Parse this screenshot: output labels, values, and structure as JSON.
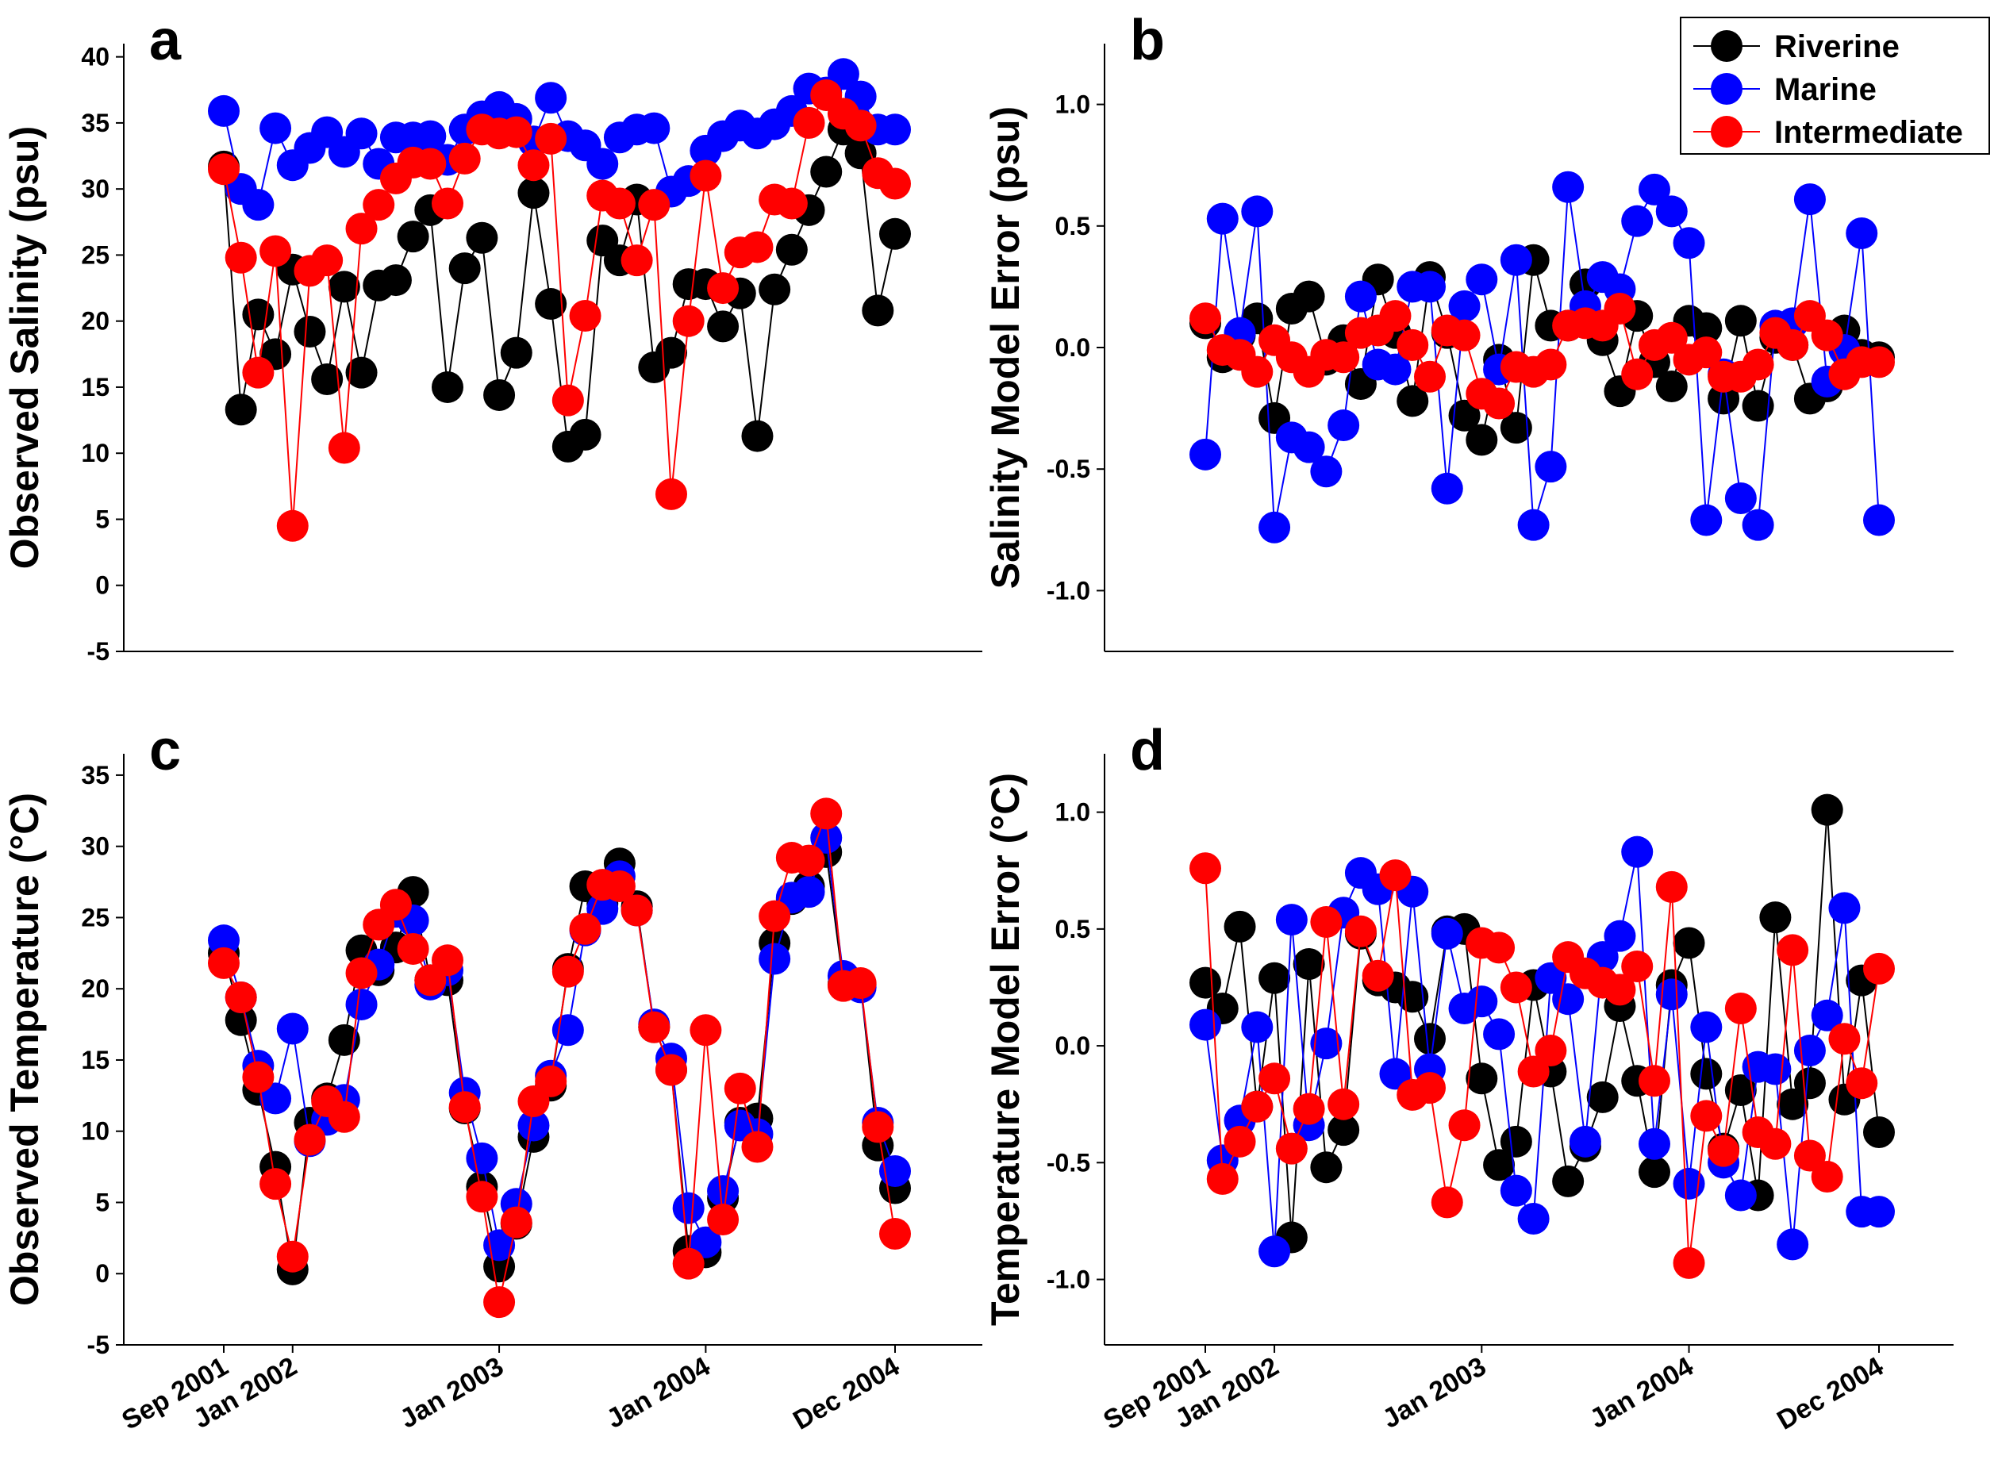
{
  "legend": [
    {
      "name": "Riverine",
      "color": "#000000"
    },
    {
      "name": "Marine",
      "color": "#0000ff"
    },
    {
      "name": "Intermediate",
      "color": "#ff0000"
    }
  ],
  "chart_data": [
    {
      "id": "a",
      "type": "line",
      "title": "a",
      "ylabel": "Observed Salinity (psu)",
      "ylim": [
        -5,
        41
      ],
      "yticks": [
        "-5",
        "0",
        "5",
        "10",
        "15",
        "20",
        "25",
        "30",
        "35",
        "40"
      ],
      "ytick_values": [
        -5,
        0,
        5,
        10,
        15,
        20,
        25,
        30,
        35,
        40
      ],
      "xticks": [],
      "x": [
        0,
        1,
        2,
        3,
        4,
        5,
        6,
        7,
        8,
        9,
        10,
        11,
        12,
        13,
        14,
        15,
        16,
        17,
        18,
        19,
        20,
        21,
        22,
        23,
        24,
        25,
        26,
        27,
        28,
        29,
        30,
        31,
        32,
        33,
        34,
        35,
        36,
        37,
        38,
        39
      ],
      "series": [
        {
          "name": "Riverine",
          "values": [
            31.7,
            13.3,
            20.5,
            17.5,
            23.9,
            19.2,
            15.6,
            22.6,
            16.1,
            22.7,
            23.1,
            26.4,
            28.4,
            15.0,
            24.0,
            26.3,
            14.4,
            17.6,
            29.7,
            21.3,
            10.5,
            11.4,
            26.1,
            24.6,
            29.2,
            16.5,
            17.6,
            22.8,
            22.8,
            19.6,
            22.1,
            11.3,
            22.4,
            25.4,
            28.4,
            31.3,
            34.5,
            32.7,
            20.8,
            26.6
          ]
        },
        {
          "name": "Marine",
          "values": [
            35.9,
            30.0,
            28.8,
            34.6,
            31.8,
            33.1,
            34.3,
            32.8,
            34.2,
            31.9,
            33.9,
            33.9,
            34.0,
            32.2,
            34.5,
            35.5,
            36.2,
            35.3,
            33.6,
            36.9,
            34.0,
            33.3,
            31.9,
            33.9,
            34.5,
            34.6,
            29.8,
            30.6,
            32.9,
            34.0,
            34.8,
            34.2,
            34.9,
            35.9,
            37.6,
            37.3,
            38.7,
            37.0,
            34.5,
            34.5
          ]
        },
        {
          "name": "Intermediate",
          "values": [
            31.5,
            24.8,
            16.1,
            25.3,
            4.5,
            23.8,
            24.6,
            10.4,
            27.0,
            28.8,
            30.8,
            32.0,
            31.9,
            28.9,
            32.3,
            34.5,
            34.2,
            34.3,
            31.8,
            33.8,
            14.0,
            20.4,
            29.5,
            28.9,
            24.6,
            28.8,
            6.9,
            20.0,
            31.0,
            22.5,
            25.2,
            25.6,
            29.2,
            28.9,
            35.0,
            37.1,
            35.7,
            34.8,
            31.2,
            30.4
          ]
        }
      ]
    },
    {
      "id": "b",
      "type": "line",
      "title": "b",
      "ylabel": "Salinity Model Error (psu)",
      "ylim": [
        -1.25,
        1.25
      ],
      "yticks": [
        "-1.0",
        "-0.5",
        "0.0",
        "0.5",
        "1.0"
      ],
      "ytick_values": [
        -1.0,
        -0.5,
        0.0,
        0.5,
        1.0
      ],
      "xticks": [],
      "x": [
        0,
        1,
        2,
        3,
        4,
        5,
        6,
        7,
        8,
        9,
        10,
        11,
        12,
        13,
        14,
        15,
        16,
        17,
        18,
        19,
        20,
        21,
        22,
        23,
        24,
        25,
        26,
        27,
        28,
        29,
        30,
        31,
        32,
        33,
        34,
        35,
        36,
        37,
        38,
        39
      ],
      "series": [
        {
          "name": "Riverine",
          "values": [
            0.1,
            -0.04,
            0.05,
            0.12,
            -0.29,
            0.16,
            0.21,
            -0.05,
            0.03,
            -0.15,
            0.28,
            0.06,
            -0.22,
            0.29,
            0.06,
            -0.28,
            -0.38,
            -0.05,
            -0.33,
            0.36,
            0.09,
            0.09,
            0.26,
            0.03,
            -0.18,
            0.13,
            -0.06,
            -0.16,
            0.11,
            0.08,
            -0.21,
            0.11,
            -0.24,
            0.04,
            0.01,
            -0.21,
            -0.16,
            0.07,
            -0.03,
            -0.04
          ]
        },
        {
          "name": "Marine",
          "values": [
            -0.44,
            0.53,
            0.06,
            0.56,
            -0.74,
            -0.37,
            -0.41,
            -0.51,
            -0.32,
            0.21,
            -0.07,
            -0.09,
            0.25,
            0.25,
            -0.58,
            0.17,
            0.28,
            -0.09,
            0.36,
            -0.73,
            -0.49,
            0.66,
            0.17,
            0.29,
            0.24,
            0.52,
            0.65,
            0.56,
            0.43,
            -0.71,
            -0.11,
            -0.62,
            -0.73,
            0.09,
            0.1,
            0.61,
            -0.14,
            -0.01,
            0.47,
            -0.71
          ]
        },
        {
          "name": "Intermediate",
          "values": [
            0.12,
            -0.01,
            -0.03,
            -0.1,
            0.03,
            -0.04,
            -0.1,
            -0.03,
            -0.04,
            0.06,
            0.07,
            0.13,
            0.01,
            -0.12,
            0.07,
            0.05,
            -0.19,
            -0.23,
            -0.08,
            -0.1,
            -0.07,
            0.09,
            0.1,
            0.09,
            0.16,
            -0.11,
            0.01,
            0.04,
            -0.05,
            -0.02,
            -0.12,
            -0.12,
            -0.07,
            0.06,
            0.01,
            0.13,
            0.05,
            -0.11,
            -0.06,
            -0.06
          ]
        }
      ]
    },
    {
      "id": "c",
      "type": "line",
      "title": "c",
      "ylabel": "Observed Temperature (°C)",
      "ylim": [
        -5,
        36.5
      ],
      "yticks": [
        "-5",
        "0",
        "5",
        "10",
        "15",
        "20",
        "25",
        "30",
        "35"
      ],
      "ytick_values": [
        -5,
        0,
        5,
        10,
        15,
        20,
        25,
        30,
        35
      ],
      "xticks": [
        "Sep 2001",
        "Jan 2002",
        "Jan 2003",
        "Jan 2004",
        "Dec 2004"
      ],
      "xtick_positions": [
        0,
        4,
        16,
        28,
        39
      ],
      "x": [
        0,
        1,
        2,
        3,
        4,
        5,
        6,
        7,
        8,
        9,
        10,
        11,
        12,
        13,
        14,
        15,
        16,
        17,
        18,
        19,
        20,
        21,
        22,
        23,
        24,
        25,
        26,
        27,
        28,
        29,
        30,
        31,
        32,
        33,
        34,
        35,
        36,
        37,
        38,
        39
      ],
      "series": [
        {
          "name": "Riverine",
          "values": [
            22.5,
            17.8,
            12.9,
            7.5,
            0.3,
            10.6,
            12.3,
            16.4,
            22.7,
            21.3,
            22.9,
            26.8,
            20.6,
            20.6,
            11.6,
            6.1,
            0.5,
            3.5,
            9.6,
            13.2,
            21.4,
            27.2,
            26.0,
            28.8,
            25.8,
            17.3,
            14.3,
            1.6,
            1.5,
            5.3,
            10.6,
            10.9,
            23.2,
            26.3,
            27.2,
            29.6,
            20.3,
            20.3,
            9.0,
            6.0
          ]
        },
        {
          "name": "Marine",
          "values": [
            23.4,
            19.4,
            14.6,
            12.3,
            17.2,
            9.3,
            10.8,
            12.2,
            18.9,
            21.7,
            25.4,
            24.8,
            20.3,
            21.3,
            12.7,
            8.1,
            2.0,
            4.9,
            10.4,
            13.9,
            17.1,
            24.1,
            25.6,
            27.9,
            25.5,
            17.5,
            15.1,
            4.6,
            2.2,
            5.8,
            10.4,
            9.8,
            22.1,
            26.4,
            26.8,
            30.6,
            20.9,
            20.1,
            10.6,
            7.2
          ]
        },
        {
          "name": "Intermediate",
          "values": [
            21.8,
            19.4,
            13.8,
            6.3,
            1.2,
            9.4,
            12.1,
            11.0,
            21.1,
            24.5,
            25.9,
            22.8,
            20.6,
            22.0,
            11.7,
            5.4,
            -2.0,
            3.6,
            12.1,
            13.5,
            21.2,
            24.2,
            27.3,
            27.2,
            25.5,
            17.3,
            14.3,
            0.7,
            17.1,
            3.8,
            13.0,
            8.9,
            25.1,
            29.2,
            29.0,
            32.3,
            20.2,
            20.4,
            10.3,
            2.8
          ]
        }
      ]
    },
    {
      "id": "d",
      "type": "line",
      "title": "d",
      "ylabel": "Temperature Model Error (°C)",
      "ylim": [
        -1.28,
        1.25
      ],
      "yticks": [
        "-1.0",
        "-0.5",
        "0.0",
        "0.5",
        "1.0"
      ],
      "ytick_values": [
        -1.0,
        -0.5,
        0.0,
        0.5,
        1.0
      ],
      "xticks": [
        "Sep 2001",
        "Jan 2002",
        "Jan 2003",
        "Jan 2004",
        "Dec 2004"
      ],
      "xtick_positions": [
        0,
        4,
        16,
        28,
        39
      ],
      "x": [
        0,
        1,
        2,
        3,
        4,
        5,
        6,
        7,
        8,
        9,
        10,
        11,
        12,
        13,
        14,
        15,
        16,
        17,
        18,
        19,
        20,
        21,
        22,
        23,
        24,
        25,
        26,
        27,
        28,
        29,
        30,
        31,
        32,
        33,
        34,
        35,
        36,
        37,
        38,
        39
      ],
      "series": [
        {
          "name": "Riverine",
          "values": [
            0.27,
            0.16,
            0.51,
            -0.26,
            0.29,
            -0.82,
            0.35,
            -0.52,
            -0.36,
            0.48,
            0.28,
            0.25,
            0.21,
            0.03,
            0.49,
            0.5,
            -0.14,
            -0.51,
            -0.41,
            0.26,
            -0.11,
            -0.58,
            -0.43,
            -0.22,
            0.17,
            -0.15,
            -0.54,
            0.26,
            0.44,
            -0.12,
            -0.44,
            -0.19,
            -0.64,
            0.55,
            -0.25,
            -0.16,
            1.01,
            -0.23,
            0.28,
            -0.37
          ]
        },
        {
          "name": "Marine",
          "values": [
            0.09,
            -0.49,
            -0.32,
            0.08,
            -0.88,
            0.54,
            -0.34,
            0.01,
            0.57,
            0.74,
            0.67,
            -0.12,
            0.66,
            -0.1,
            0.48,
            0.16,
            0.19,
            0.05,
            -0.62,
            -0.74,
            0.29,
            0.2,
            -0.41,
            0.38,
            0.47,
            0.83,
            -0.42,
            0.22,
            -0.59,
            0.08,
            -0.5,
            -0.64,
            -0.09,
            -0.1,
            -0.85,
            -0.02,
            0.13,
            0.59,
            -0.71,
            -0.71
          ]
        },
        {
          "name": "Intermediate",
          "values": [
            0.76,
            -0.57,
            -0.41,
            -0.26,
            -0.14,
            -0.44,
            -0.27,
            0.53,
            -0.25,
            0.49,
            0.3,
            0.73,
            -0.21,
            -0.18,
            -0.67,
            -0.34,
            0.44,
            0.42,
            0.25,
            -0.11,
            -0.02,
            0.38,
            0.31,
            0.27,
            0.24,
            0.34,
            -0.15,
            0.68,
            -0.93,
            -0.3,
            -0.45,
            0.16,
            -0.37,
            -0.42,
            0.41,
            -0.47,
            -0.56,
            0.03,
            -0.16,
            0.33
          ]
        }
      ]
    }
  ]
}
